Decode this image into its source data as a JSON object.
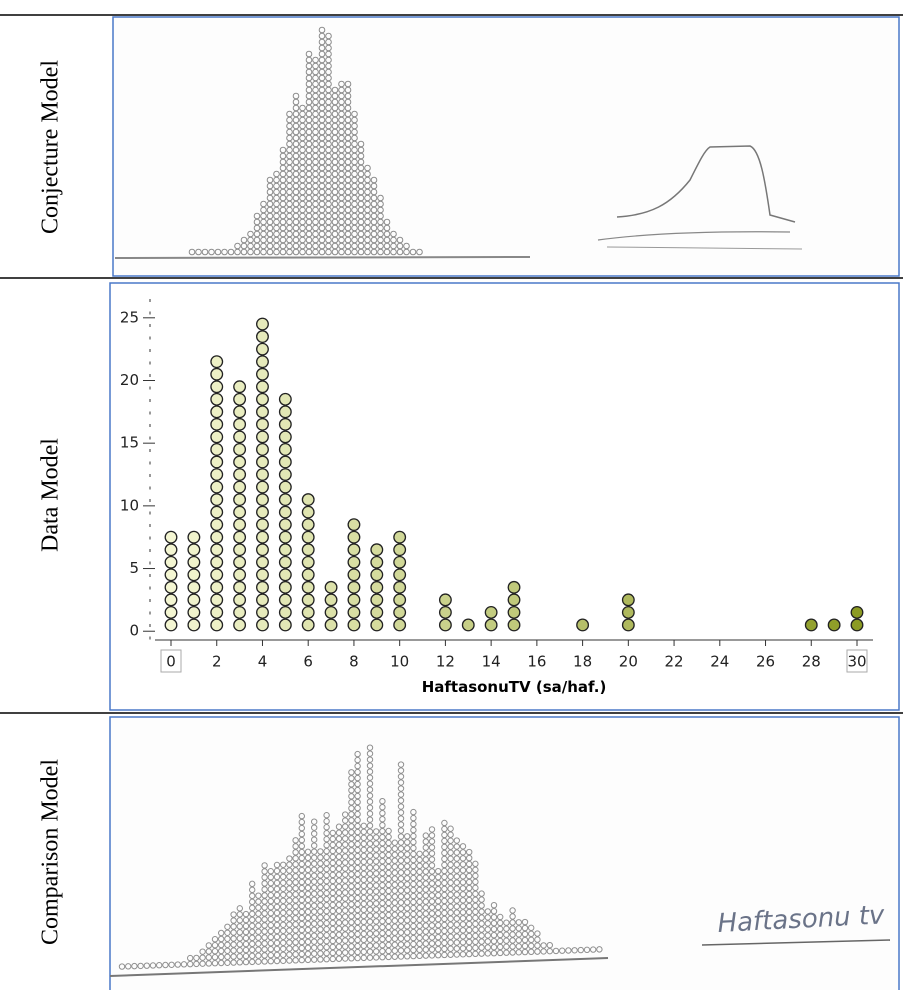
{
  "rows": [
    "Conjecture Model",
    "Data Model",
    "Comparison Model"
  ],
  "comparison_annotation": "Haftasonu tv",
  "chart_data": {
    "type": "dotplot",
    "x_label": "HaftasonuTV (sa/haf.)",
    "x": [
      0,
      1,
      2,
      3,
      4,
      5,
      6,
      7,
      8,
      9,
      10,
      12,
      13,
      14,
      15,
      18,
      20,
      28,
      29,
      30
    ],
    "values": [
      8,
      8,
      22,
      20,
      25,
      19,
      11,
      4,
      9,
      7,
      8,
      3,
      1,
      2,
      4,
      1,
      3,
      1,
      1,
      2
    ],
    "color_range": [
      "#f6f8d6",
      "#8a991f"
    ],
    "xlim": [
      -0.7,
      30.7
    ],
    "ylim": [
      -0.7,
      26.5
    ],
    "xticks": [
      0,
      2,
      4,
      6,
      8,
      10,
      12,
      14,
      16,
      18,
      20,
      22,
      24,
      26,
      28,
      30
    ],
    "yticks": [
      0,
      5,
      10,
      15,
      20,
      25
    ]
  }
}
